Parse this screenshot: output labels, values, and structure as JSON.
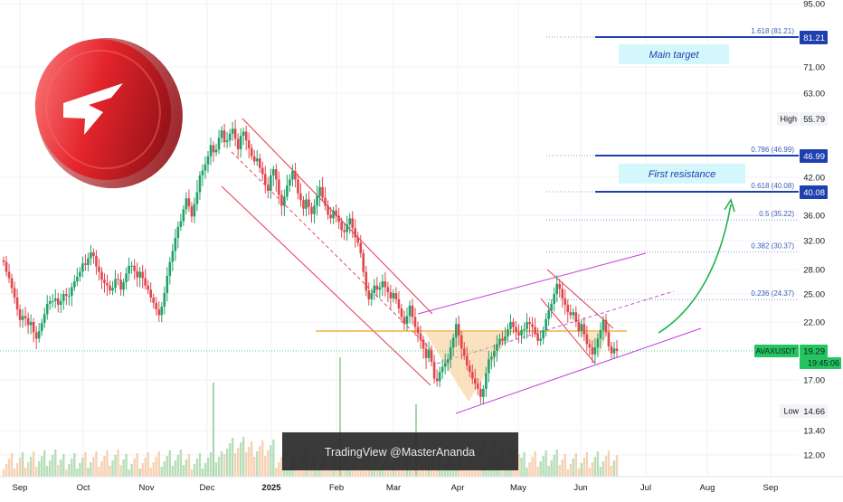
{
  "chart_data": {
    "type": "candlestick",
    "symbol": "AVAXUSDT",
    "price_axis": {
      "scale": "log",
      "ticks": [
        "95.00",
        "81.21",
        "71.00",
        "63.00",
        "55.79",
        "46.99",
        "42.00",
        "40.08",
        "36.00",
        "32.00",
        "28.00",
        "25.00",
        "22.00",
        "19.29",
        "17.00",
        "14.66",
        "13.40",
        "12.00"
      ]
    },
    "time_axis": {
      "ticks": [
        "Sep",
        "Oct",
        "Nov",
        "Dec",
        "2025",
        "Feb",
        "Mar",
        "Apr",
        "May",
        "Jun",
        "Jul",
        "Aug",
        "Sep"
      ]
    },
    "price_badges": [
      {
        "id": "target",
        "text": "81.21",
        "value": 81.21,
        "color": "#1e3fae"
      },
      {
        "id": "high_label",
        "text": "High",
        "color": "#f2f3f5"
      },
      {
        "id": "high_value",
        "text": "55.79",
        "value": 55.79,
        "color": "#f2f3f5"
      },
      {
        "id": "fib786",
        "text": "46.99",
        "value": 46.99,
        "color": "#1e3fae"
      },
      {
        "id": "fib618",
        "text": "40.08",
        "value": 40.08,
        "color": "#1e3fae"
      },
      {
        "id": "symbol",
        "text": "AVAXUSDT",
        "color": "#22c55e"
      },
      {
        "id": "last_price",
        "text": "19.29",
        "value": 19.29,
        "color": "#22c55e"
      },
      {
        "id": "countdown",
        "text": "19:45:06",
        "color": "#22c55e"
      },
      {
        "id": "low_label",
        "text": "Low",
        "color": "#f2f3f5"
      },
      {
        "id": "low_value",
        "text": "14.66",
        "value": 14.66,
        "color": "#f2f3f5"
      }
    ],
    "fib_levels": [
      {
        "label": "1.618 (81.21)",
        "value": 81.21
      },
      {
        "label": "0.786 (46.99)",
        "value": 46.99
      },
      {
        "label": "0.618 (40.08)",
        "value": 40.08
      },
      {
        "label": "0.5 (35.22)",
        "value": 35.22
      },
      {
        "label": "0.382 (30.37)",
        "value": 30.37
      },
      {
        "label": "0.236 (24.37)",
        "value": 24.37
      }
    ],
    "annotations": {
      "main_target": "Main target",
      "first_resistance": "First resistance",
      "watermark": "TradingView @MasterAnanda"
    },
    "support_level": 20.9,
    "last_price": 19.29,
    "candles": [
      [
        29.2,
        29.0
      ],
      [
        29.0,
        27.7
      ],
      [
        27.7,
        26.9
      ],
      [
        26.9,
        25.7
      ],
      [
        25.7,
        24.6
      ],
      [
        24.6,
        23.3
      ],
      [
        23.3,
        22.2
      ],
      [
        22.2,
        22.6
      ],
      [
        22.6,
        22.4
      ],
      [
        22.4,
        21.7
      ],
      [
        21.7,
        22.0
      ],
      [
        22.0,
        21.0
      ],
      [
        21.0,
        20.4
      ],
      [
        20.4,
        21.1
      ],
      [
        21.1,
        21.9
      ],
      [
        21.9,
        22.8
      ],
      [
        22.8,
        23.9
      ],
      [
        23.9,
        24.2
      ],
      [
        24.2,
        24.2
      ],
      [
        24.2,
        24.5
      ],
      [
        24.5,
        23.8
      ],
      [
        23.8,
        24.2
      ],
      [
        24.2,
        25.0
      ],
      [
        25.0,
        24.8
      ],
      [
        24.8,
        24.8
      ],
      [
        24.8,
        25.8
      ],
      [
        25.8,
        26.5
      ],
      [
        26.5,
        27.1
      ],
      [
        27.1,
        27.7
      ],
      [
        27.7,
        28.8
      ],
      [
        28.8,
        28.6
      ],
      [
        28.6,
        29.5
      ],
      [
        29.5,
        30.3
      ],
      [
        30.3,
        29.8
      ],
      [
        29.8,
        28.4
      ],
      [
        28.4,
        27.7
      ],
      [
        27.7,
        26.7
      ],
      [
        26.7,
        26.3
      ],
      [
        26.3,
        26.0
      ],
      [
        26.0,
        25.4
      ],
      [
        25.4,
        25.7
      ],
      [
        25.7,
        26.8
      ],
      [
        26.8,
        26.7
      ],
      [
        26.7,
        25.5
      ],
      [
        25.5,
        26.4
      ],
      [
        26.4,
        27.5
      ],
      [
        27.5,
        28.5
      ],
      [
        28.5,
        28.5
      ],
      [
        28.5,
        27.8
      ],
      [
        27.8,
        27.0
      ],
      [
        27.0,
        27.7
      ],
      [
        27.7,
        26.9
      ],
      [
        26.9,
        26.0
      ],
      [
        26.0,
        25.5
      ],
      [
        25.5,
        24.6
      ],
      [
        24.6,
        24.0
      ],
      [
        24.0,
        23.3
      ],
      [
        23.3,
        22.7
      ],
      [
        22.7,
        23.6
      ],
      [
        23.6,
        25.1
      ],
      [
        25.1,
        27.2
      ],
      [
        27.2,
        29.0
      ],
      [
        29.0,
        30.5
      ],
      [
        30.5,
        32.4
      ],
      [
        32.4,
        34.1
      ],
      [
        34.1,
        35.0
      ],
      [
        35.0,
        37.0
      ],
      [
        37.0,
        38.9
      ],
      [
        38.9,
        37.5
      ],
      [
        37.5,
        35.8
      ],
      [
        35.8,
        37.9
      ],
      [
        37.9,
        40.0
      ],
      [
        40.0,
        42.4
      ],
      [
        42.4,
        43.5
      ],
      [
        43.5,
        44.9
      ],
      [
        44.9,
        46.8
      ],
      [
        46.8,
        49.3
      ],
      [
        49.3,
        47.7
      ],
      [
        47.7,
        48.3
      ],
      [
        48.3,
        51.0
      ],
      [
        51.0,
        52.8
      ],
      [
        52.8,
        50.0
      ],
      [
        50.0,
        50.4
      ],
      [
        50.4,
        52.0
      ],
      [
        52.0,
        53.2
      ],
      [
        53.2,
        50.8
      ],
      [
        50.8,
        48.4
      ],
      [
        48.4,
        51.5
      ],
      [
        51.5,
        52.5
      ],
      [
        52.5,
        50.4
      ],
      [
        50.4,
        48.6
      ],
      [
        48.6,
        46.8
      ],
      [
        46.8,
        45.6
      ],
      [
        45.6,
        46.3
      ],
      [
        46.3,
        44.1
      ],
      [
        44.1,
        42.7
      ],
      [
        42.7,
        41.0
      ],
      [
        41.0,
        40.2
      ],
      [
        40.2,
        42.4
      ],
      [
        42.4,
        43.8
      ],
      [
        43.8,
        41.7
      ],
      [
        41.7,
        39.5
      ],
      [
        39.5,
        37.6
      ],
      [
        37.6,
        39.2
      ],
      [
        39.2,
        40.9
      ],
      [
        40.9,
        41.7
      ],
      [
        41.7,
        43.4
      ],
      [
        43.4,
        41.7
      ],
      [
        41.7,
        39.8
      ],
      [
        39.8,
        38.6
      ],
      [
        38.6,
        37.1
      ],
      [
        37.1,
        38.7
      ],
      [
        38.7,
        37.4
      ],
      [
        37.4,
        36.2
      ],
      [
        36.2,
        37.6
      ],
      [
        37.6,
        39.3
      ],
      [
        39.3,
        40.7
      ],
      [
        40.7,
        39.0
      ],
      [
        39.0,
        37.6
      ],
      [
        37.6,
        36.1
      ],
      [
        36.1,
        35.5
      ],
      [
        35.5,
        36.8
      ],
      [
        36.8,
        35.9
      ],
      [
        35.9,
        34.9
      ],
      [
        34.9,
        33.6
      ],
      [
        33.6,
        33.3
      ],
      [
        33.3,
        34.5
      ],
      [
        34.5,
        35.5
      ],
      [
        35.5,
        33.9
      ],
      [
        33.9,
        32.5
      ],
      [
        32.5,
        31.7
      ],
      [
        31.7,
        30.2
      ],
      [
        30.2,
        27.7
      ],
      [
        27.7,
        25.4
      ],
      [
        25.4,
        24.4
      ],
      [
        24.4,
        25.1
      ],
      [
        25.1,
        26.0
      ],
      [
        26.0,
        25.5
      ],
      [
        25.5,
        25.8
      ],
      [
        25.8,
        26.5
      ],
      [
        26.5,
        25.8
      ],
      [
        25.8,
        25.2
      ],
      [
        25.2,
        24.5
      ],
      [
        24.5,
        25.1
      ],
      [
        25.1,
        24.4
      ],
      [
        24.4,
        23.4
      ],
      [
        23.4,
        22.5
      ],
      [
        22.5,
        21.8
      ],
      [
        21.8,
        22.6
      ],
      [
        22.6,
        23.7
      ],
      [
        23.7,
        22.5
      ],
      [
        22.5,
        21.5
      ],
      [
        21.5,
        20.9
      ],
      [
        20.9,
        20.3
      ],
      [
        20.3,
        19.5
      ],
      [
        19.5,
        18.7
      ],
      [
        18.7,
        19.4
      ],
      [
        19.4,
        18.4
      ],
      [
        18.4,
        17.1
      ],
      [
        17.1,
        16.9
      ],
      [
        16.9,
        17.6
      ],
      [
        17.6,
        18.0
      ],
      [
        18.0,
        18.3
      ],
      [
        18.3,
        18.6
      ],
      [
        18.6,
        19.6
      ],
      [
        19.6,
        20.5
      ],
      [
        20.5,
        21.8
      ],
      [
        21.8,
        20.7
      ],
      [
        20.7,
        19.5
      ],
      [
        19.5,
        18.9
      ],
      [
        18.9,
        18.1
      ],
      [
        18.1,
        17.6
      ],
      [
        17.6,
        17.1
      ],
      [
        17.1,
        16.7
      ],
      [
        16.7,
        16.3
      ],
      [
        16.3,
        15.7
      ],
      [
        15.7,
        16.3
      ],
      [
        16.3,
        17.5
      ],
      [
        17.5,
        18.6
      ],
      [
        18.6,
        18.8
      ],
      [
        18.8,
        19.3
      ],
      [
        19.3,
        19.9
      ],
      [
        19.9,
        20.4
      ],
      [
        20.4,
        20.2
      ],
      [
        20.2,
        20.6
      ],
      [
        20.6,
        21.3
      ],
      [
        21.3,
        22.0
      ],
      [
        22.0,
        21.5
      ],
      [
        21.5,
        21.0
      ],
      [
        21.0,
        20.7
      ],
      [
        20.7,
        21.2
      ],
      [
        21.2,
        21.3
      ],
      [
        21.3,
        22.0
      ],
      [
        22.0,
        21.8
      ],
      [
        21.8,
        21.5
      ],
      [
        21.5,
        20.9
      ],
      [
        20.9,
        20.2
      ],
      [
        20.2,
        20.4
      ],
      [
        20.4,
        21.2
      ],
      [
        21.2,
        22.3
      ],
      [
        22.3,
        23.2
      ],
      [
        23.2,
        23.9
      ],
      [
        23.9,
        25.0
      ],
      [
        25.0,
        26.2
      ],
      [
        26.2,
        25.6
      ],
      [
        25.6,
        24.5
      ],
      [
        24.5,
        23.8
      ],
      [
        23.8,
        23.0
      ],
      [
        23.0,
        22.7
      ],
      [
        22.7,
        23.0
      ],
      [
        23.0,
        22.0
      ],
      [
        22.0,
        21.1
      ],
      [
        21.1,
        21.8
      ],
      [
        21.8,
        20.8
      ],
      [
        20.8,
        19.9
      ],
      [
        19.9,
        19.6
      ],
      [
        19.6,
        19.0
      ],
      [
        19.0,
        19.6
      ],
      [
        19.6,
        20.4
      ],
      [
        20.4,
        21.2
      ],
      [
        21.2,
        22.2
      ],
      [
        22.2,
        21.0
      ],
      [
        21.0,
        19.7
      ],
      [
        19.7,
        19.1
      ],
      [
        19.1,
        19.5
      ],
      [
        19.5,
        19.3
      ]
    ]
  }
}
